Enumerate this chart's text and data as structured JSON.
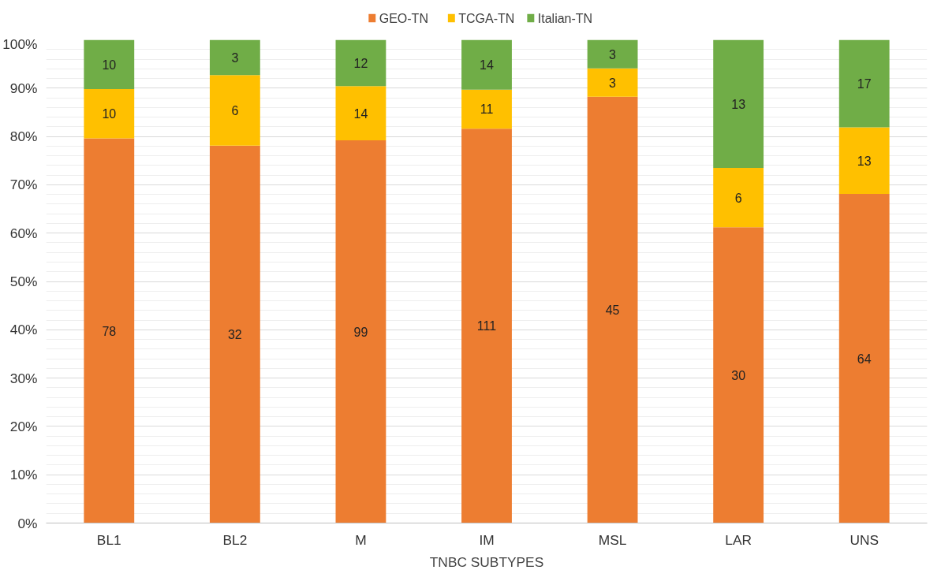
{
  "chart_data": {
    "type": "bar",
    "stacked": true,
    "xlabel": "TNBC SUBTYPES",
    "categories": [
      "BL1",
      "BL2",
      "M",
      "IM",
      "MSL",
      "LAR",
      "UNS"
    ],
    "series": [
      {
        "name": "GEO-TN",
        "color": "#ed7d31",
        "values": [
          79.6,
          78.1,
          79.2,
          81.6,
          88.2,
          61.2,
          68.1
        ]
      },
      {
        "name": "TCGA-TN",
        "color": "#ffc000",
        "values": [
          10.2,
          14.6,
          11.2,
          8.1,
          5.9,
          12.3,
          13.8
        ]
      },
      {
        "name": "Italian-TN",
        "color": "#70ad47",
        "values": [
          10.2,
          7.3,
          9.6,
          10.3,
          5.9,
          26.5,
          18.1
        ]
      }
    ],
    "annotations": [
      "78",
      "10",
      "10",
      "32",
      "6",
      "3",
      "99",
      "14",
      "12",
      "111",
      "11",
      "14",
      "45",
      "3",
      "3",
      "30",
      "6",
      "13",
      "64",
      "13",
      "17"
    ],
    "ylim": [
      0,
      100
    ],
    "yticks": [
      {
        "value": 0,
        "label": "0%"
      },
      {
        "value": 10,
        "label": "10%"
      },
      {
        "value": 20,
        "label": "20%"
      },
      {
        "value": 30,
        "label": "30%"
      },
      {
        "value": 40,
        "label": "40%"
      },
      {
        "value": 50,
        "label": "50%"
      },
      {
        "value": 60,
        "label": "60%"
      },
      {
        "value": 70,
        "label": "70%"
      },
      {
        "value": 80,
        "label": "80%"
      },
      {
        "value": 90,
        "label": "90%"
      },
      {
        "value": 100,
        "label": "100%"
      }
    ],
    "grid": "y",
    "legend": "top"
  }
}
